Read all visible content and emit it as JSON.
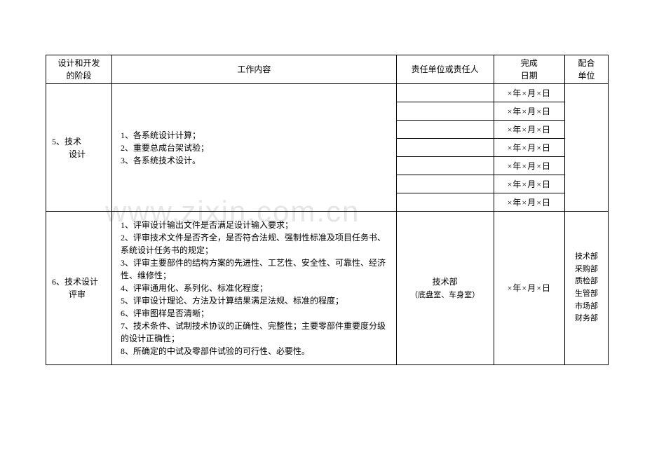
{
  "watermark": "www.zixin.com.cn",
  "header": {
    "stage": "设计和开发\n的阶段",
    "work": "工作内容",
    "responsible": "责任单位或责任人",
    "date": "完成\n日期",
    "cooperate": "配合\n单位"
  },
  "row5": {
    "stage": "5、技术\n　　设计",
    "work": "1、各系统设计计算；\n2、重要总成台架试验；\n3、各系统技术设计。",
    "dates": [
      "×年×月×日",
      "×年×月×日",
      "×年×月×日",
      "×年×月×日",
      "×年×月×日",
      "×年×月×日",
      "×年×月×日"
    ],
    "coop": ""
  },
  "row6": {
    "stage": "6、技术设计\n　　评审",
    "work": "1、评审设计输出文件是否满足设计输入要求；\n2、评审技术文件是否齐全，是否符合法规、强制性标准及项目任务书、系统设计任务书的规定；\n3、评审主要部件的结构方案的先进性、工艺性、安全性、可靠性、经济性、维修性；\n4、评审通用化、系列化、标准化程度；\n5、评审设计理论、方法及计算结果满足法规、标准的程度；\n6、评审图样是否清晰；\n7、技术条件、试制技术协议的正确性、完整性；主要零部件重要度分级的设计正确性；\n8、所确定的中试及零部件试验的可行性、必要性。",
    "responsible_main": "技术部",
    "responsible_sub": "（底盘室、车身室）",
    "date": "×年×月×日",
    "coop": "技术部\n采购部\n质检部\n生管部\n市场部\n财务部"
  }
}
